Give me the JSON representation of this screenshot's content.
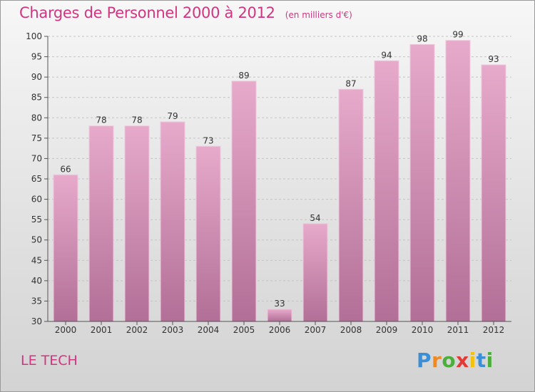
{
  "header": {
    "title": "Charges de Personnel 2000 à 2012",
    "unit": "(en milliers d'€)"
  },
  "footer": {
    "commune": "LE TECH",
    "logo_text": "Proxiti",
    "logo_colors": [
      "#3a8fd6",
      "#f08a1f",
      "#4cae3c",
      "#e53935",
      "#f4c20d",
      "#3a8fd6",
      "#4cae3c"
    ]
  },
  "colors": {
    "accent": "#d2357f",
    "bar_top": "#e7aacb",
    "bar_bottom": "#b26f97"
  },
  "chart_data": {
    "type": "bar",
    "title": "Charges de Personnel 2000 à 2012",
    "subtitle": "(en milliers d'€)",
    "xlabel": "",
    "ylabel": "",
    "categories": [
      "2000",
      "2001",
      "2002",
      "2003",
      "2004",
      "2005",
      "2006",
      "2007",
      "2008",
      "2009",
      "2010",
      "2011",
      "2012"
    ],
    "values": [
      66,
      78,
      78,
      79,
      73,
      89,
      33,
      54,
      87,
      94,
      98,
      99,
      93
    ],
    "ylim": [
      30,
      100
    ],
    "yticks": [
      30,
      35,
      40,
      45,
      50,
      55,
      60,
      65,
      70,
      75,
      80,
      85,
      90,
      95,
      100
    ],
    "grid": "horizontal-dashed",
    "data_labels": true,
    "legend": "none"
  }
}
